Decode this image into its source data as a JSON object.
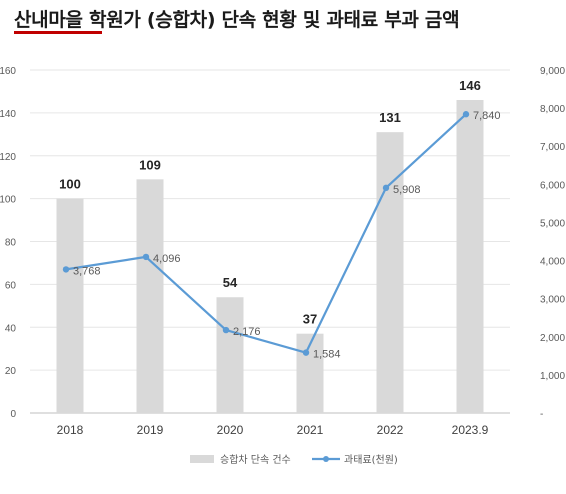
{
  "title": "산내마을 학원가 (승합차) 단속 현황 및 과태료 부과 금액",
  "chart_data": {
    "type": "bar",
    "categories": [
      "2018",
      "2019",
      "2020",
      "2021",
      "2022",
      "2023.9"
    ],
    "series": [
      {
        "name": "승합차 단속 건수",
        "type": "bar",
        "axis": "left",
        "values": [
          100,
          109,
          54,
          37,
          131,
          146
        ],
        "labels": [
          "100",
          "109",
          "54",
          "37",
          "131",
          "146"
        ]
      },
      {
        "name": "과태료(천원)",
        "type": "line",
        "axis": "right",
        "values": [
          3768,
          4096,
          2176,
          1584,
          5908,
          7840
        ],
        "labels": [
          "3,768",
          "4,096",
          "2,176",
          "1,584",
          "5,908",
          "7,840"
        ]
      }
    ],
    "y_left": {
      "ylim": [
        0,
        160
      ],
      "ticks": [
        "0",
        "20",
        "40",
        "60",
        "80",
        "100",
        "120",
        "140",
        "160"
      ]
    },
    "y_right": {
      "ylim": [
        0,
        9000
      ],
      "ticks": [
        "-",
        "1,000",
        "2,000",
        "3,000",
        "4,000",
        "5,000",
        "6,000",
        "7,000",
        "8,000",
        "9,000"
      ]
    },
    "grid": true,
    "legend_position": "bottom",
    "colors": {
      "bar": "#d9d9d9",
      "line": "#5b9bd5",
      "grid": "#e6e6e6",
      "text": "#595959"
    }
  }
}
